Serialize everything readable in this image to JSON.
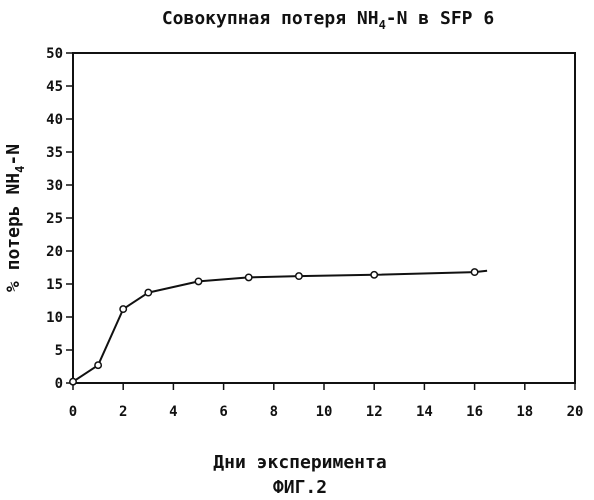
{
  "figure_caption": "ФИГ.2",
  "chart_data": {
    "type": "line",
    "title": {
      "prefix": "Совокупная потеря NH",
      "sub": "4",
      "suffix": "-N в SFP 6"
    },
    "xlabel": "Дни эксперимента",
    "ylabel": {
      "prefix": "% потерь NH",
      "sub": "4",
      "suffix": "-N"
    },
    "xlim": [
      0,
      20
    ],
    "ylim": [
      0,
      50
    ],
    "x_ticks": [
      0,
      2,
      4,
      6,
      8,
      10,
      12,
      14,
      16,
      18,
      20
    ],
    "y_ticks": [
      0,
      5,
      10,
      15,
      20,
      25,
      30,
      35,
      40,
      45,
      50
    ],
    "grid": false,
    "series": [
      {
        "x": [
          0,
          1,
          2,
          3,
          5,
          7,
          9,
          12,
          16
        ],
        "y": [
          0.2,
          2.7,
          11.2,
          13.7,
          15.4,
          16.0,
          16.2,
          16.4,
          16.8
        ],
        "curve_end": {
          "x": 16.5,
          "y": 17.0
        }
      }
    ]
  }
}
